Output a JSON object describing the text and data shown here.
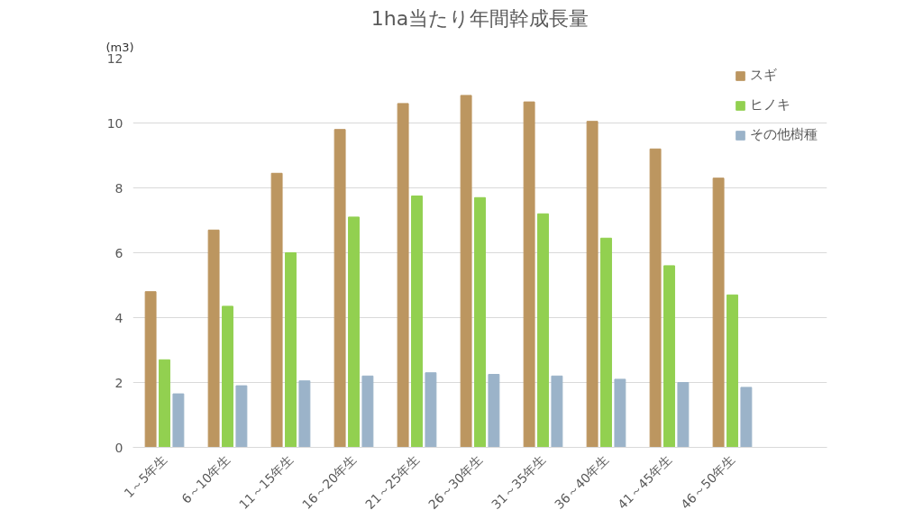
{
  "chart_data": {
    "type": "bar",
    "title": "1ha当たり年間幹成長量",
    "ylabel": "(m3)",
    "categories": [
      "1～5年生",
      "6～10年生",
      "11～15年生",
      "16～20年生",
      "21～25年生",
      "26～30年生",
      "31～35年生",
      "36～40年生",
      "41～45年生",
      "46～50年生",
      null
    ],
    "series": [
      {
        "name": "スギ",
        "color": "#bc9660",
        "values": [
          4.8,
          6.7,
          8.45,
          9.8,
          10.6,
          10.85,
          10.65,
          10.05,
          9.2,
          8.3,
          null
        ]
      },
      {
        "name": "ヒノキ",
        "color": "#92d050",
        "values": [
          2.7,
          4.35,
          6.0,
          7.1,
          7.75,
          7.7,
          7.2,
          6.45,
          5.6,
          4.7,
          null
        ]
      },
      {
        "name": "その他樹種",
        "color": "#9bb3c9",
        "values": [
          1.65,
          1.9,
          2.05,
          2.2,
          2.3,
          2.25,
          2.2,
          2.1,
          2.0,
          1.85,
          null
        ]
      }
    ],
    "ylim": [
      0,
      12
    ],
    "yticks": [
      0,
      2,
      4,
      6,
      8,
      10,
      12
    ],
    "grid": "y",
    "legend": "top right"
  }
}
